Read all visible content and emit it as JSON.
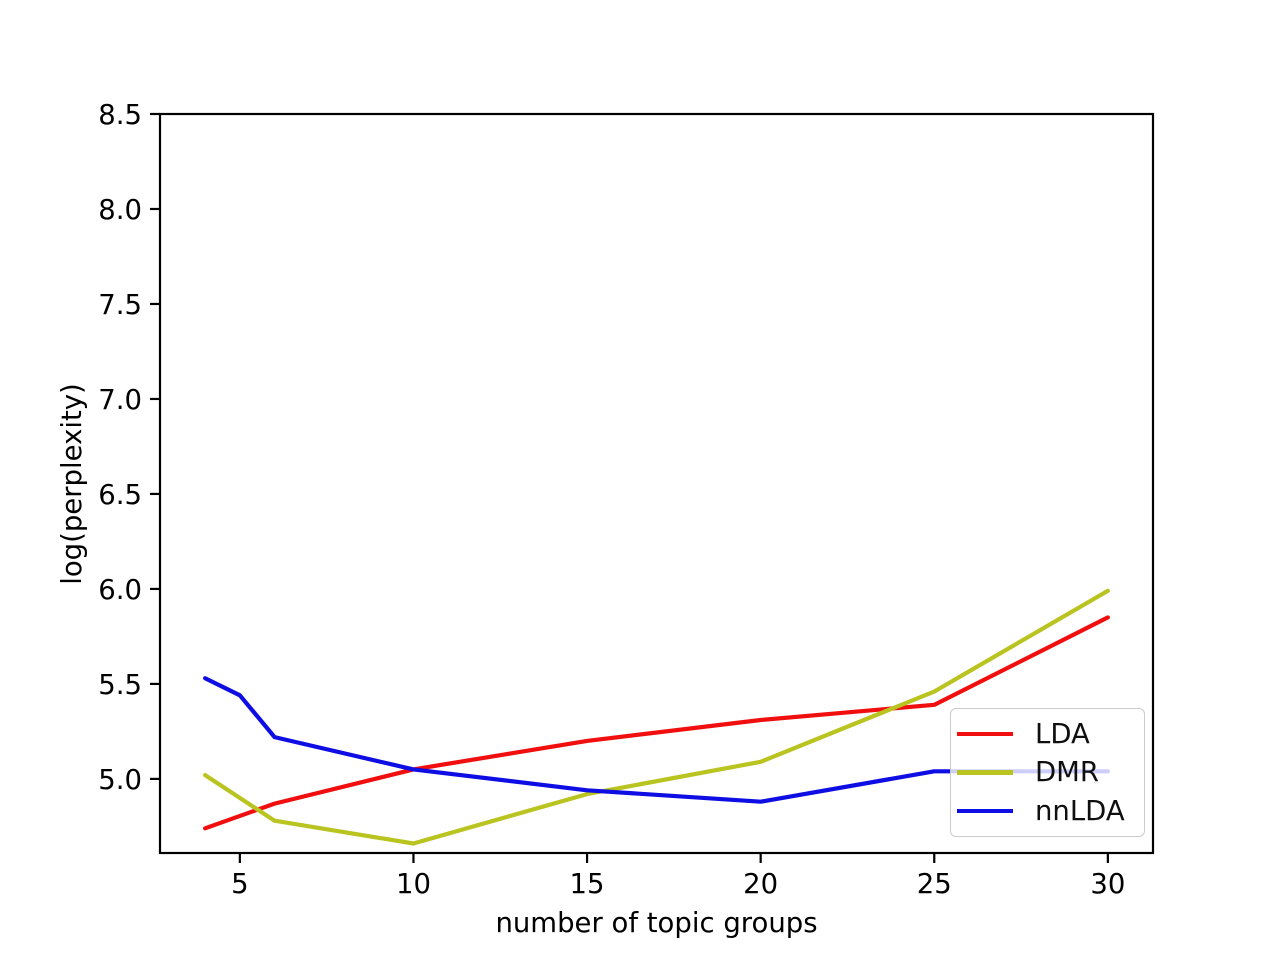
{
  "figure": {
    "background": "#ffffff"
  },
  "colors": {
    "axes": "#000000",
    "tick_text": "#000000",
    "legend_border": "#cbcbcb",
    "legend_background_alpha": 0.8
  },
  "chart_data": {
    "type": "line",
    "title": "",
    "xlabel": "number of topic groups",
    "ylabel": "log(perplexity)",
    "xlim": [
      2.7,
      31.3
    ],
    "ylim": [
      4.61,
      8.5
    ],
    "grid": false,
    "legend_position": "lower right",
    "xticks": {
      "values": [
        5,
        10,
        15,
        20,
        25,
        30
      ],
      "labels": [
        "5",
        "10",
        "15",
        "20",
        "25",
        "30"
      ]
    },
    "yticks": {
      "values": [
        5.0,
        5.5,
        6.0,
        6.5,
        7.0,
        7.5,
        8.0,
        8.5
      ],
      "labels": [
        "5.0",
        "5.5",
        "6.0",
        "6.5",
        "7.0",
        "7.5",
        "8.0",
        "8.5"
      ]
    },
    "series": [
      {
        "name": "LDA",
        "color": "#f10e0e",
        "x": [
          4,
          6,
          10,
          15,
          20,
          25,
          30
        ],
        "y": [
          4.74,
          4.87,
          5.05,
          5.2,
          5.31,
          5.39,
          5.85
        ]
      },
      {
        "name": "DMR",
        "color": "#b9c420",
        "x": [
          4,
          6,
          10,
          15,
          20,
          25,
          30
        ],
        "y": [
          5.02,
          4.78,
          4.66,
          4.92,
          5.09,
          5.46,
          5.99
        ]
      },
      {
        "name": "nnLDA",
        "color": "#0e0ee4",
        "x": [
          4,
          5,
          6,
          10,
          15,
          20,
          25,
          30
        ],
        "y": [
          5.53,
          5.44,
          5.22,
          5.05,
          4.94,
          4.88,
          5.04,
          5.04
        ]
      }
    ]
  }
}
